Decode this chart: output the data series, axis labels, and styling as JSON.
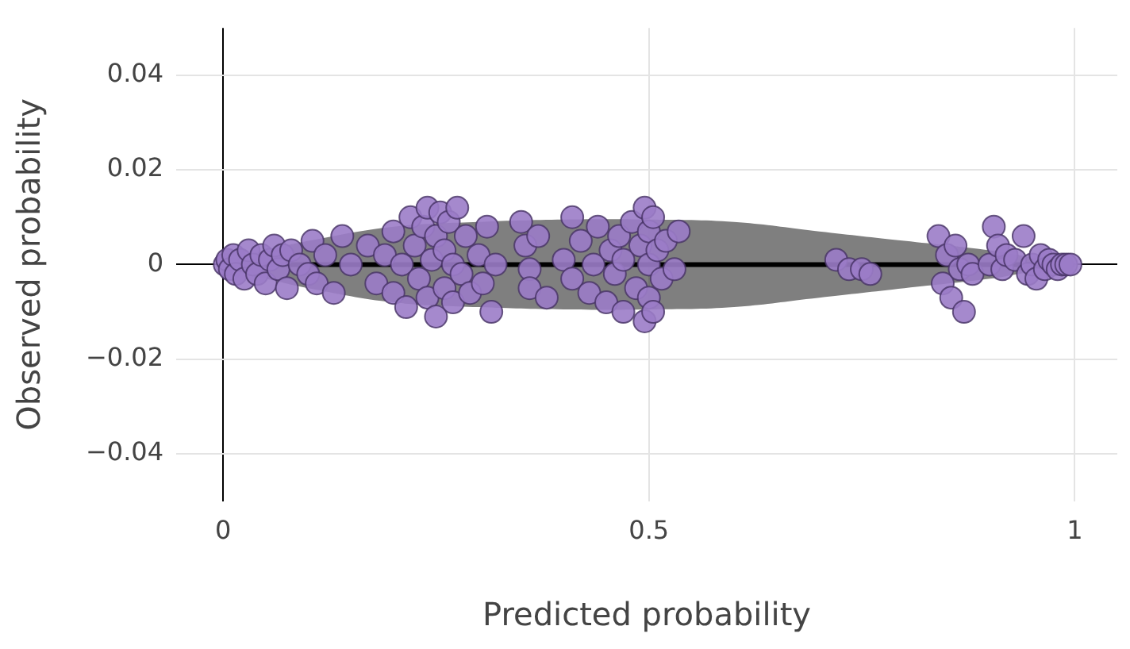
{
  "chart_data": {
    "type": "scatter",
    "xlabel": "Predicted probability",
    "ylabel": "Observed probability",
    "xlim": [
      -0.055,
      1.05
    ],
    "xticks": [
      0,
      0.5,
      1
    ],
    "ylim": [
      -0.05,
      0.05
    ],
    "yticks": [
      {
        "value": -0.04,
        "label": "−0.04"
      },
      {
        "value": -0.02,
        "label": "−0.02"
      },
      0,
      0.02,
      0.04
    ],
    "grid": true,
    "legend": false,
    "series": [
      {
        "type": "line",
        "color": "#000000",
        "x": [
          0,
          0.05,
          0.1,
          0.2,
          0.3,
          0.4,
          0.5,
          0.6,
          0.7,
          0.8,
          0.9,
          0.95,
          1
        ],
        "values": [
          0,
          0,
          0,
          0,
          0,
          0,
          0,
          0,
          0,
          0,
          0,
          0,
          0
        ],
        "upper": [
          0.001,
          0.003,
          0.005,
          0.008,
          0.009,
          0.0095,
          0.0095,
          0.009,
          0.007,
          0.005,
          0.003,
          0.0015,
          0
        ],
        "lower": [
          -0.001,
          -0.003,
          -0.005,
          -0.008,
          -0.009,
          -0.0095,
          -0.0095,
          -0.009,
          -0.007,
          -0.005,
          -0.003,
          -0.0015,
          0
        ]
      },
      {
        "type": "scatter",
        "color": "#9b7cc8",
        "marker": "circle",
        "x": [
          0.002,
          0.005,
          0.008,
          0.012,
          0.015,
          0.02,
          0.025,
          0.03,
          0.035,
          0.04,
          0.045,
          0.05,
          0.055,
          0.06,
          0.065,
          0.07,
          0.075,
          0.08,
          0.09,
          0.1,
          0.105,
          0.11,
          0.12,
          0.13,
          0.14,
          0.15,
          0.17,
          0.18,
          0.19,
          0.2,
          0.2,
          0.21,
          0.215,
          0.22,
          0.225,
          0.23,
          0.235,
          0.24,
          0.24,
          0.245,
          0.25,
          0.25,
          0.255,
          0.26,
          0.26,
          0.265,
          0.27,
          0.27,
          0.275,
          0.28,
          0.285,
          0.29,
          0.3,
          0.305,
          0.31,
          0.315,
          0.32,
          0.35,
          0.355,
          0.36,
          0.36,
          0.37,
          0.38,
          0.4,
          0.41,
          0.41,
          0.42,
          0.43,
          0.435,
          0.44,
          0.45,
          0.455,
          0.46,
          0.465,
          0.47,
          0.47,
          0.48,
          0.485,
          0.49,
          0.495,
          0.495,
          0.5,
          0.5,
          0.5,
          0.505,
          0.505,
          0.51,
          0.515,
          0.52,
          0.53,
          0.535,
          0.72,
          0.735,
          0.75,
          0.76,
          0.84,
          0.845,
          0.85,
          0.855,
          0.86,
          0.865,
          0.87,
          0.875,
          0.88,
          0.9,
          0.905,
          0.91,
          0.915,
          0.92,
          0.93,
          0.94,
          0.945,
          0.95,
          0.955,
          0.96,
          0.965,
          0.97,
          0.975,
          0.98,
          0.985,
          0.99,
          0.995
        ],
        "values": [
          0,
          0.001,
          -0.001,
          0.002,
          -0.002,
          0.001,
          -0.003,
          0.003,
          0,
          -0.002,
          0.002,
          -0.004,
          0.001,
          0.004,
          -0.001,
          0.002,
          -0.005,
          0.003,
          0,
          -0.002,
          0.005,
          -0.004,
          0.002,
          -0.006,
          0.006,
          0,
          0.004,
          -0.004,
          0.002,
          0.007,
          -0.006,
          0,
          -0.009,
          0.01,
          0.004,
          -0.003,
          0.008,
          -0.007,
          0.012,
          0.001,
          -0.011,
          0.006,
          0.011,
          -0.005,
          0.003,
          0.009,
          -0.008,
          0,
          0.012,
          -0.002,
          0.006,
          -0.006,
          0.002,
          -0.004,
          0.008,
          -0.01,
          0,
          0.009,
          0.004,
          -0.001,
          -0.005,
          0.006,
          -0.007,
          0.001,
          0.01,
          -0.003,
          0.005,
          -0.006,
          0,
          0.008,
          -0.008,
          0.003,
          -0.002,
          0.006,
          -0.01,
          0.001,
          0.009,
          -0.005,
          0.004,
          0.012,
          -0.012,
          0.007,
          -0.007,
          0,
          0.01,
          -0.01,
          0.003,
          -0.003,
          0.005,
          -0.001,
          0.007,
          0.001,
          -0.001,
          -0.001,
          -0.002,
          0.006,
          -0.004,
          0.002,
          -0.007,
          0.004,
          -0.001,
          -0.01,
          0,
          -0.002,
          0,
          0.008,
          0.004,
          -0.001,
          0.002,
          0.001,
          0.006,
          -0.002,
          0,
          -0.003,
          0.002,
          -0.001,
          0.001,
          0,
          -0.001,
          0,
          0,
          0
        ]
      }
    ]
  }
}
